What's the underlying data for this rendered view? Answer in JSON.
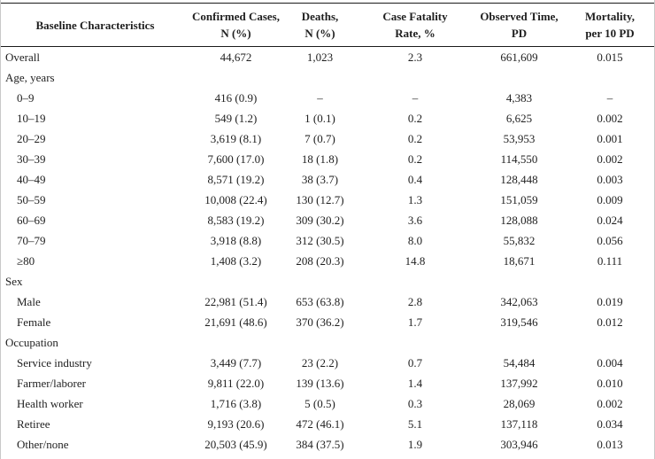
{
  "colors": {
    "background": "#ffffff",
    "text": "#1f1f1f",
    "rule": "#1a1a1a",
    "page_edge": "#c9c9c9"
  },
  "table": {
    "columns": [
      [
        "Baseline Characteristics"
      ],
      [
        "Confirmed Cases,",
        "N (%)"
      ],
      [
        "Deaths,",
        "N (%)"
      ],
      [
        "Case Fatality",
        "Rate, %"
      ],
      [
        "Observed Time,",
        "PD"
      ],
      [
        "Mortality,",
        "per 10 PD"
      ]
    ],
    "rows": [
      {
        "label": "Overall",
        "indent": false,
        "cells": [
          "44,672",
          "1,023",
          "2.3",
          "661,609",
          "0.015"
        ]
      },
      {
        "label": "Age, years",
        "indent": false,
        "cells": [
          "",
          "",
          "",
          "",
          ""
        ]
      },
      {
        "label": "0–9",
        "indent": true,
        "cells": [
          "416 (0.9)",
          "–",
          "–",
          "4,383",
          "–"
        ]
      },
      {
        "label": "10–19",
        "indent": true,
        "cells": [
          "549 (1.2)",
          "1 (0.1)",
          "0.2",
          "6,625",
          "0.002"
        ]
      },
      {
        "label": "20–29",
        "indent": true,
        "cells": [
          "3,619 (8.1)",
          "7 (0.7)",
          "0.2",
          "53,953",
          "0.001"
        ]
      },
      {
        "label": "30–39",
        "indent": true,
        "cells": [
          "7,600 (17.0)",
          "18 (1.8)",
          "0.2",
          "114,550",
          "0.002"
        ]
      },
      {
        "label": "40–49",
        "indent": true,
        "cells": [
          "8,571 (19.2)",
          "38 (3.7)",
          "0.4",
          "128,448",
          "0.003"
        ]
      },
      {
        "label": "50–59",
        "indent": true,
        "cells": [
          "10,008 (22.4)",
          "130 (12.7)",
          "1.3",
          "151,059",
          "0.009"
        ]
      },
      {
        "label": "60–69",
        "indent": true,
        "cells": [
          "8,583 (19.2)",
          "309 (30.2)",
          "3.6",
          "128,088",
          "0.024"
        ]
      },
      {
        "label": "70–79",
        "indent": true,
        "cells": [
          "3,918 (8.8)",
          "312 (30.5)",
          "8.0",
          "55,832",
          "0.056"
        ]
      },
      {
        "label": "≥80",
        "indent": true,
        "cells": [
          "1,408 (3.2)",
          "208 (20.3)",
          "14.8",
          "18,671",
          "0.111"
        ]
      },
      {
        "label": "Sex",
        "indent": false,
        "cells": [
          "",
          "",
          "",
          "",
          ""
        ]
      },
      {
        "label": "Male",
        "indent": true,
        "cells": [
          "22,981 (51.4)",
          "653 (63.8)",
          "2.8",
          "342,063",
          "0.019"
        ]
      },
      {
        "label": "Female",
        "indent": true,
        "cells": [
          "21,691 (48.6)",
          "370 (36.2)",
          "1.7",
          "319,546",
          "0.012"
        ]
      },
      {
        "label": "Occupation",
        "indent": false,
        "cells": [
          "",
          "",
          "",
          "",
          ""
        ]
      },
      {
        "label": "Service industry",
        "indent": true,
        "cells": [
          "3,449 (7.7)",
          "23 (2.2)",
          "0.7",
          "54,484",
          "0.004"
        ]
      },
      {
        "label": "Farmer/laborer",
        "indent": true,
        "cells": [
          "9,811 (22.0)",
          "139 (13.6)",
          "1.4",
          "137,992",
          "0.010"
        ]
      },
      {
        "label": "Health worker",
        "indent": true,
        "cells": [
          "1,716 (3.8)",
          "5 (0.5)",
          "0.3",
          "28,069",
          "0.002"
        ]
      },
      {
        "label": "Retiree",
        "indent": true,
        "cells": [
          "9,193 (20.6)",
          "472 (46.1)",
          "5.1",
          "137,118",
          "0.034"
        ]
      },
      {
        "label": "Other/none",
        "indent": true,
        "cells": [
          "20,503 (45.9)",
          "384 (37.5)",
          "1.9",
          "303,946",
          "0.013"
        ]
      }
    ]
  }
}
